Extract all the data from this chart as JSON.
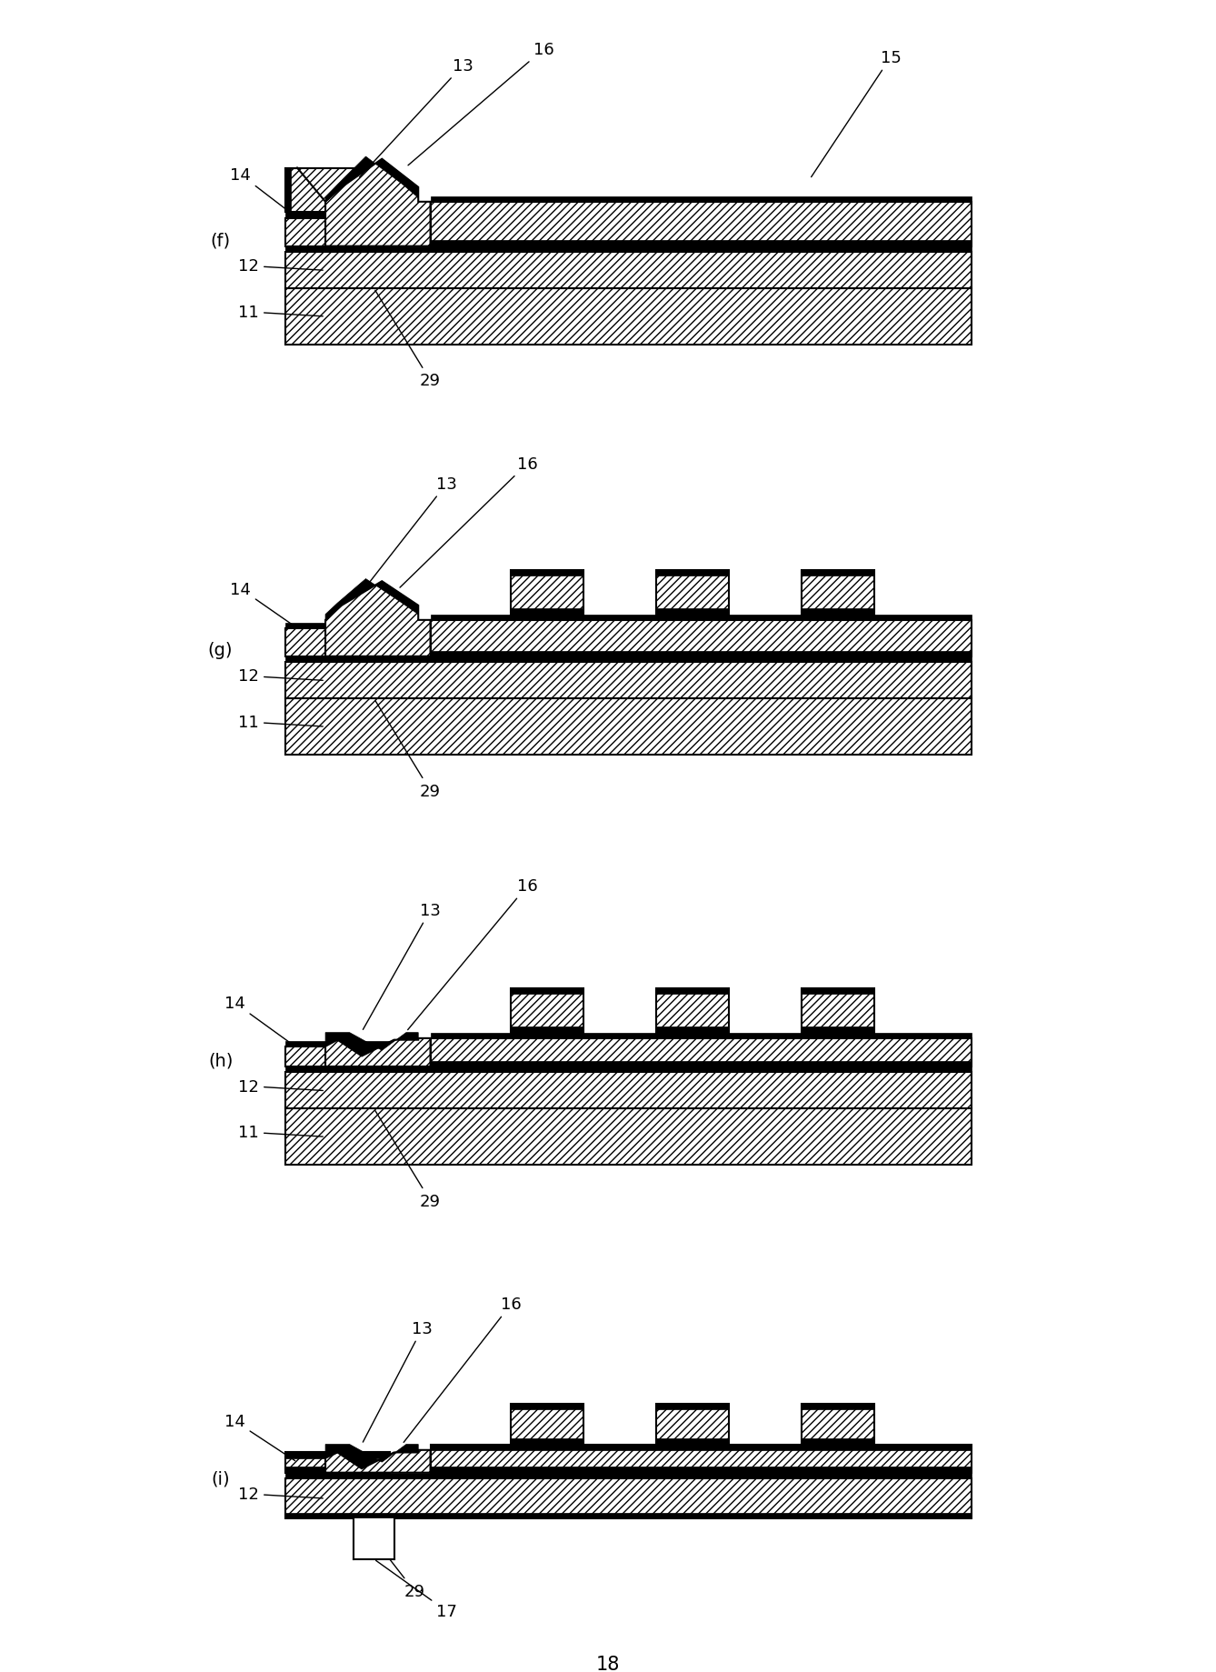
{
  "panels": [
    "f",
    "g",
    "h",
    "i"
  ],
  "bg_color": "#ffffff",
  "hatch_pattern": "////",
  "hatch_pattern2": "XXXX",
  "line_color": "#000000",
  "fill_color": "#ffffff",
  "title": "18",
  "font_size_label": 14,
  "font_size_ref": 13
}
